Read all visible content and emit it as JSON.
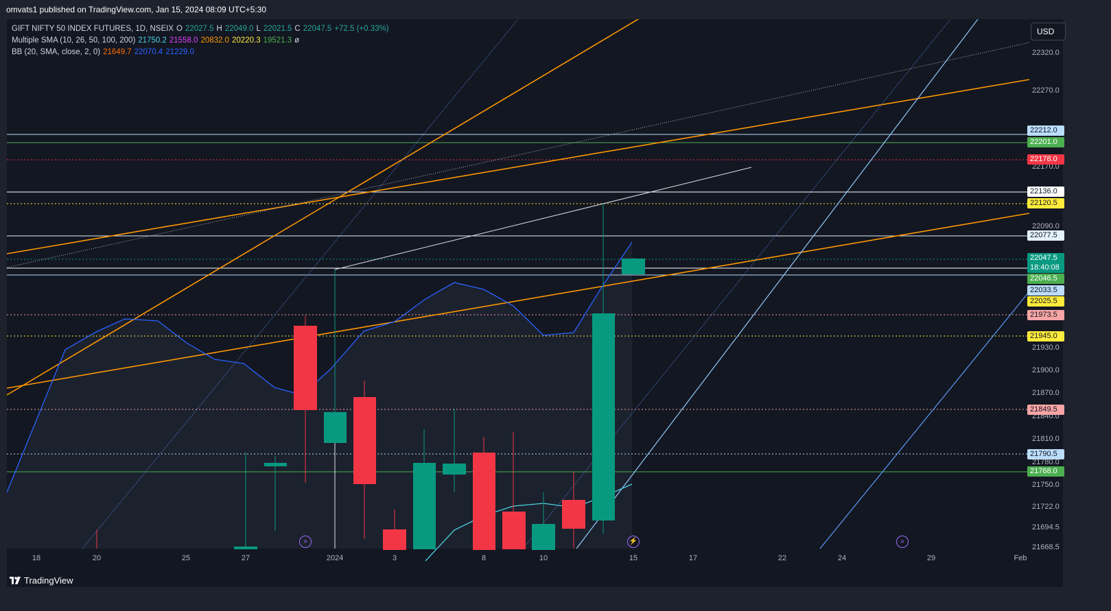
{
  "header": {
    "published_text": "omvats1 published on TradingView.com, Jan 15, 2024 08:09 UTC+5:30"
  },
  "legend": {
    "symbol_row": [
      {
        "text": "GIFT NIFTY 50 INDEX FUTURES, 1D, NSEIX",
        "color": "#d1d4dc"
      },
      {
        "text": "O",
        "color": "#d1d4dc"
      },
      {
        "text": "22027.5",
        "color": "#26a69a"
      },
      {
        "text": "H",
        "color": "#d1d4dc"
      },
      {
        "text": "22049.0",
        "color": "#26a69a"
      },
      {
        "text": "L",
        "color": "#d1d4dc"
      },
      {
        "text": "22021.5",
        "color": "#26a69a"
      },
      {
        "text": "C",
        "color": "#d1d4dc"
      },
      {
        "text": "22047.5",
        "color": "#26a69a"
      },
      {
        "text": "+72.5 (+0.33%)",
        "color": "#26a69a"
      }
    ],
    "sma_row": [
      {
        "text": "Multiple SMA (10, 26, 50, 100, 200)",
        "color": "#d1d4dc"
      },
      {
        "text": "21750.2",
        "color": "#4dd0e1"
      },
      {
        "text": "21558.0",
        "color": "#e040fb"
      },
      {
        "text": "20832.0",
        "color": "#ff9800"
      },
      {
        "text": "20220.3",
        "color": "#ffeb3b"
      },
      {
        "text": "19521.3",
        "color": "#4caf50"
      },
      {
        "text": "ø",
        "color": "#d1d4dc"
      }
    ],
    "bb_row": [
      {
        "text": "BB (20, SMA, close, 2, 0)",
        "color": "#d1d4dc"
      },
      {
        "text": "21649.7",
        "color": "#ff6d00"
      },
      {
        "text": "22070.4",
        "color": "#2962ff"
      },
      {
        "text": "21229.0",
        "color": "#2962ff"
      }
    ]
  },
  "currency_button": "USD",
  "price_axis_ticks": [
    "22320.0",
    "22270.0",
    "22170.0",
    "22090.0",
    "21930.0",
    "21900.0",
    "21870.0",
    "21840.0",
    "21810.0",
    "21780.0",
    "21750.0",
    "21722.0",
    "21694.5",
    "21668.5"
  ],
  "price_labels": [
    {
      "text": "22212.0",
      "bg": "#bbdefb",
      "fg": "#131722"
    },
    {
      "text": "22201.0",
      "bg": "#4caf50",
      "fg": "#ffffff"
    },
    {
      "text": "22178.0",
      "bg": "#f23645",
      "fg": "#ffffff"
    },
    {
      "text": "22136.0",
      "bg": "#ffffff",
      "fg": "#131722"
    },
    {
      "text": "22120.5",
      "bg": "#ffeb3b",
      "fg": "#131722"
    },
    {
      "text": "22077.5",
      "bg": "#e3f2fd",
      "fg": "#131722"
    },
    {
      "text": "22047.5",
      "bg": "#089981",
      "fg": "#ffffff"
    },
    {
      "text": "18:40:08",
      "bg": "#089981",
      "fg": "#ffffff"
    },
    {
      "text": "22046.5",
      "bg": "#4caf50",
      "fg": "#ffffff"
    },
    {
      "text": "22033.5",
      "bg": "#bbdefb",
      "fg": "#131722"
    },
    {
      "text": "22025.5",
      "bg": "#ffeb3b",
      "fg": "#131722"
    },
    {
      "text": "21973.5",
      "bg": "#f7a5a5",
      "fg": "#131722"
    },
    {
      "text": "21945.0",
      "bg": "#ffeb3b",
      "fg": "#131722"
    },
    {
      "text": "21849.5",
      "bg": "#f7a5a5",
      "fg": "#131722"
    },
    {
      "text": "21790.5",
      "bg": "#bbdefb",
      "fg": "#131722"
    },
    {
      "text": "21768.0",
      "bg": "#4caf50",
      "fg": "#ffffff"
    }
  ],
  "time_axis": [
    "18",
    "20",
    "25",
    "27",
    "2024",
    "3",
    "8",
    "10",
    "15",
    "17",
    "22",
    "24",
    "29",
    "Feb"
  ],
  "brand": "TradingView",
  "colors": {
    "up": "#089981",
    "down": "#f23645",
    "bb": "#2962ff",
    "trend": "#ff9800",
    "sma10": "#4dd0e1"
  },
  "icons": [
    "flash-event-icon",
    "lightning-event-icon",
    "tradingview-logo-icon"
  ]
}
